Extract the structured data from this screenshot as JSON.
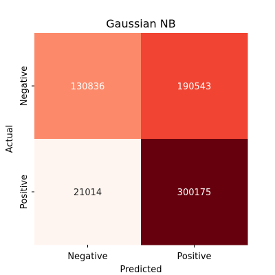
{
  "chart_data": {
    "type": "heatmap",
    "title": "Gaussian NB",
    "xlabel": "Predicted",
    "ylabel": "Actual",
    "x_categories": [
      "Negative",
      "Positive"
    ],
    "y_categories": [
      "Negative",
      "Positive"
    ],
    "values": [
      [
        130836,
        190543
      ],
      [
        21014,
        300175
      ]
    ],
    "colormap": "Reds",
    "colorbar": false,
    "cell_colors": [
      [
        "#fc8a6a",
        "#f14432"
      ],
      [
        "#fff5f0",
        "#67000d"
      ]
    ],
    "text_colors": [
      [
        "#ffffff",
        "#ffffff"
      ],
      [
        "#262626",
        "#ffffff"
      ]
    ]
  }
}
